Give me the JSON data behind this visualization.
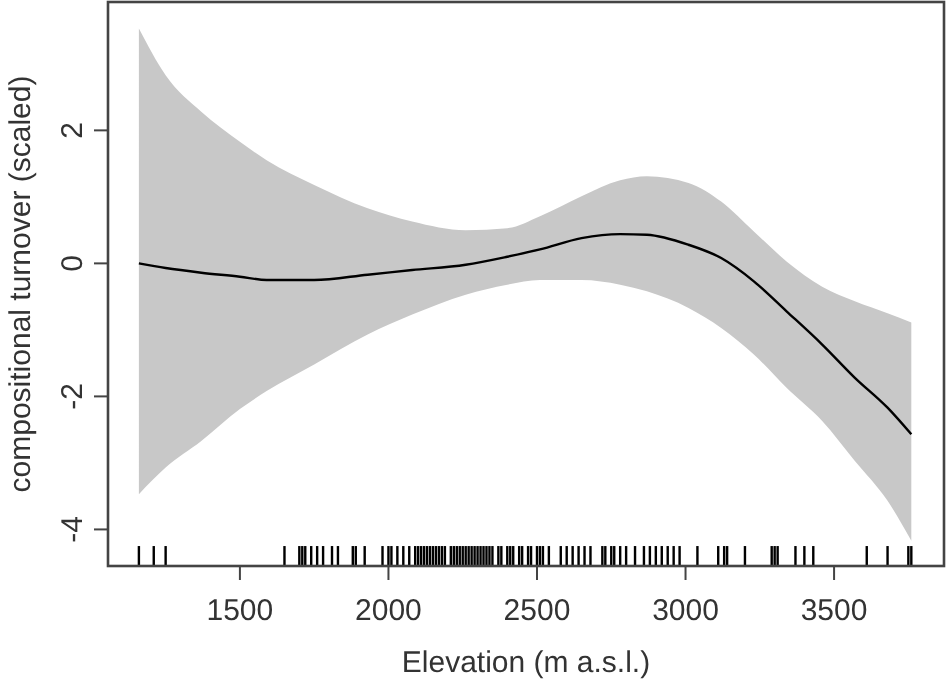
{
  "chart_data": {
    "type": "line",
    "xlabel": "Elevation (m a.s.l.)",
    "ylabel": "compositional turnover (scaled)",
    "xlim": [
      1056,
      3870
    ],
    "ylim": [
      -4.55,
      3.93
    ],
    "xticks": [
      1500,
      2000,
      2500,
      3000,
      3500
    ],
    "yticks": [
      -4,
      -2,
      0,
      2
    ],
    "grid": false,
    "series": [
      {
        "color": "#000000",
        "x": [
          1160,
          1250,
          1370,
          1500,
          1590,
          1750,
          1930,
          2080,
          2260,
          2400,
          2510,
          2650,
          2780,
          2870,
          3010,
          3120,
          3230,
          3340,
          3460,
          3570,
          3680,
          3760
        ],
        "values": [
          0.0,
          -0.07,
          -0.14,
          -0.2,
          -0.25,
          -0.25,
          -0.17,
          -0.1,
          -0.02,
          0.1,
          0.21,
          0.38,
          0.44,
          0.43,
          0.28,
          0.08,
          -0.27,
          -0.72,
          -1.22,
          -1.72,
          -2.17,
          -2.57
        ],
        "lower": [
          -3.47,
          -3.07,
          -2.67,
          -2.19,
          -1.92,
          -1.52,
          -1.07,
          -0.77,
          -0.47,
          -0.32,
          -0.25,
          -0.25,
          -0.32,
          -0.42,
          -0.67,
          -0.97,
          -1.37,
          -1.87,
          -2.37,
          -2.97,
          -3.57,
          -4.17
        ],
        "upper": [
          3.53,
          2.83,
          2.28,
          1.83,
          1.55,
          1.18,
          0.83,
          0.63,
          0.5,
          0.53,
          0.71,
          1.01,
          1.25,
          1.31,
          1.21,
          0.93,
          0.48,
          0.03,
          -0.35,
          -0.57,
          -0.75,
          -0.89
        ]
      },
      {
        "type": "bar",
        "color": "#000000",
        "x": [
          1160,
          1210,
          1250,
          1650,
          1700,
          1710,
          1720,
          1740,
          1760,
          1780,
          1810,
          1830,
          1880,
          1890,
          1920,
          1980,
          2000,
          2010,
          2030,
          2050,
          2070,
          2090,
          2100,
          2110,
          2120,
          2130,
          2140,
          2150,
          2160,
          2170,
          2180,
          2190,
          2210,
          2220,
          2230,
          2240,
          2250,
          2260,
          2270,
          2280,
          2290,
          2300,
          2310,
          2320,
          2330,
          2340,
          2350,
          2370,
          2380,
          2400,
          2410,
          2420,
          2440,
          2450,
          2470,
          2480,
          2500,
          2510,
          2520,
          2540,
          2580,
          2600,
          2620,
          2640,
          2660,
          2680,
          2720,
          2730,
          2750,
          2760,
          2780,
          2800,
          2830,
          2860,
          2880,
          2900,
          2920,
          2940,
          2960,
          2980,
          3040,
          3110,
          3130,
          3140,
          3200,
          3290,
          3300,
          3310,
          3370,
          3400,
          3430,
          3610,
          3680,
          3750,
          3760
        ],
        "base": [
          -4.55,
          -4.55,
          -4.55,
          -4.55,
          -4.55,
          -4.55,
          -4.55,
          -4.55,
          -4.55,
          -4.55,
          -4.55,
          -4.55,
          -4.55,
          -4.55,
          -4.55,
          -4.55,
          -4.55,
          -4.55,
          -4.55,
          -4.55,
          -4.55,
          -4.55,
          -4.55,
          -4.55,
          -4.55,
          -4.55,
          -4.55,
          -4.55,
          -4.55,
          -4.55,
          -4.55,
          -4.55,
          -4.55,
          -4.55,
          -4.55,
          -4.55,
          -4.55,
          -4.55,
          -4.55,
          -4.55,
          -4.55,
          -4.55,
          -4.55,
          -4.55,
          -4.55,
          -4.55,
          -4.55,
          -4.55,
          -4.55,
          -4.55,
          -4.55,
          -4.55,
          -4.55,
          -4.55,
          -4.55,
          -4.55,
          -4.55,
          -4.55,
          -4.55,
          -4.55,
          -4.55,
          -4.55,
          -4.55,
          -4.55,
          -4.55,
          -4.55,
          -4.55,
          -4.55,
          -4.55,
          -4.55,
          -4.55,
          -4.55,
          -4.55,
          -4.55,
          -4.55,
          -4.55,
          -4.55,
          -4.55,
          -4.55,
          -4.55,
          -4.55,
          -4.55,
          -4.55,
          -4.55,
          -4.55,
          -4.55,
          -4.55,
          -4.55,
          -4.55,
          -4.55,
          -4.55,
          -4.55,
          -4.55,
          -4.55,
          -4.55
        ],
        "values": [
          0.3,
          0.3,
          0.3,
          0.3,
          0.3,
          0.3,
          0.3,
          0.3,
          0.3,
          0.3,
          0.3,
          0.3,
          0.3,
          0.3,
          0.3,
          0.3,
          0.3,
          0.3,
          0.3,
          0.3,
          0.3,
          0.3,
          0.3,
          0.3,
          0.3,
          0.3,
          0.3,
          0.3,
          0.3,
          0.3,
          0.3,
          0.3,
          0.3,
          0.3,
          0.3,
          0.3,
          0.3,
          0.3,
          0.3,
          0.3,
          0.3,
          0.3,
          0.3,
          0.3,
          0.3,
          0.3,
          0.3,
          0.3,
          0.3,
          0.3,
          0.3,
          0.3,
          0.3,
          0.3,
          0.3,
          0.3,
          0.3,
          0.3,
          0.3,
          0.3,
          0.3,
          0.3,
          0.3,
          0.3,
          0.3,
          0.3,
          0.3,
          0.3,
          0.3,
          0.3,
          0.3,
          0.3,
          0.3,
          0.3,
          0.3,
          0.3,
          0.3,
          0.3,
          0.3,
          0.3,
          0.3,
          0.3,
          0.3,
          0.3,
          0.3,
          0.3,
          0.3,
          0.3,
          0.3,
          0.3,
          0.3,
          0.3,
          0.3,
          0.3,
          0.3
        ]
      }
    ]
  }
}
